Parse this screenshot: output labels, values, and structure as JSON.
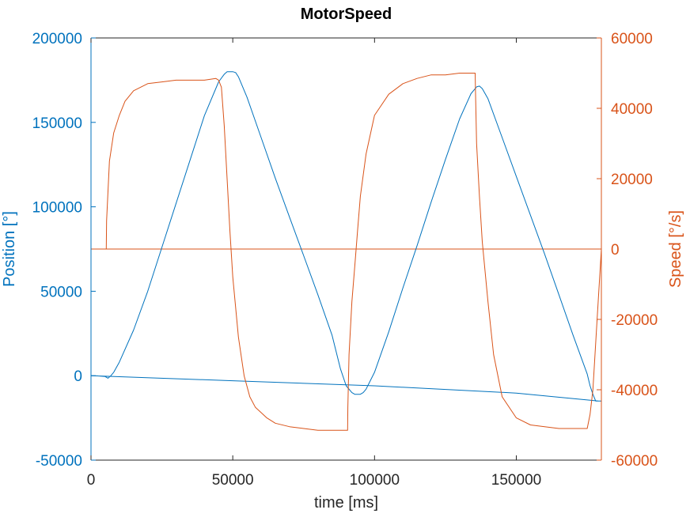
{
  "colors": {
    "position": "#0072bd",
    "speed": "#d95319",
    "axis": "#262626",
    "background": "#ffffff"
  },
  "chart_data": {
    "type": "line",
    "title": "MotorSpeed",
    "xlabel": "time [ms]",
    "ylabel_left": "Position [°]",
    "ylabel_right": "Speed [°/s]",
    "xlim": [
      0,
      180000
    ],
    "ylim_left": [
      -50000,
      200000
    ],
    "ylim_right": [
      -60000,
      60000
    ],
    "grid": false,
    "legend": "none",
    "x_ticks": [
      0,
      50000,
      100000,
      150000
    ],
    "x_tick_labels": [
      "0",
      "50000",
      "100000",
      "150000"
    ],
    "y_left_ticks": [
      -50000,
      0,
      50000,
      100000,
      150000,
      200000
    ],
    "y_left_tick_labels": [
      "-50000",
      "0",
      "50000",
      "100000",
      "150000",
      "200000"
    ],
    "y_right_ticks": [
      -60000,
      -40000,
      -20000,
      0,
      20000,
      40000,
      60000
    ],
    "y_right_tick_labels": [
      "-60000",
      "-40000",
      "-20000",
      "0",
      "20000",
      "40000",
      "60000"
    ],
    "series": [
      {
        "axis": "left",
        "color": "#0072bd",
        "x": [
          0,
          2000,
          5000,
          6000,
          7000,
          8000,
          10000,
          15000,
          20000,
          25000,
          30000,
          35000,
          40000,
          45000,
          47000,
          48000,
          49000,
          50000,
          51000,
          52000,
          55000,
          60000,
          65000,
          70000,
          75000,
          80000,
          85000,
          88000,
          90000,
          92000,
          93000,
          94000,
          95000,
          96000,
          97000,
          100000,
          105000,
          110000,
          115000,
          120000,
          125000,
          130000,
          134000,
          136000,
          137000,
          138000,
          140000,
          145000,
          150000,
          155000,
          160000,
          165000,
          170000,
          175000,
          176000,
          177000,
          178000,
          180000,
          179000,
          150000,
          100000,
          50000,
          0
        ],
        "y": [
          0,
          -100,
          -500,
          -1500,
          0,
          2000,
          8000,
          27000,
          50000,
          76000,
          102000,
          128000,
          154000,
          174000,
          178500,
          180000,
          180000,
          180000,
          179500,
          177000,
          165000,
          141000,
          117000,
          94000,
          71000,
          48000,
          24000,
          4000,
          -6000,
          -10000,
          -11000,
          -11000,
          -11000,
          -10000,
          -8000,
          2000,
          26000,
          52000,
          77000,
          103000,
          128000,
          152000,
          167000,
          171000,
          171500,
          170000,
          164000,
          141000,
          118000,
          95000,
          72000,
          48000,
          24000,
          1000,
          -6000,
          -11000,
          -15000,
          -15000,
          -15000,
          -10300,
          -6000,
          -3000,
          0
        ]
      },
      {
        "axis": "right",
        "color": "#d95319",
        "x": [
          0,
          5400,
          5500,
          6500,
          8000,
          10000,
          12000,
          15000,
          20000,
          25000,
          30000,
          35000,
          40000,
          44000,
          45000,
          45500,
          46000,
          47000,
          48000,
          49000,
          50000,
          52000,
          54000,
          56000,
          58000,
          60000,
          62000,
          65000,
          70000,
          75000,
          80000,
          85000,
          89000,
          90500,
          90600,
          91000,
          92000,
          93000,
          94000,
          95000,
          97000,
          100000,
          105000,
          110000,
          115000,
          120000,
          125000,
          130000,
          134000,
          135500,
          135600,
          136000,
          137000,
          138000,
          140000,
          142000,
          145000,
          150000,
          155000,
          160000,
          165000,
          170000,
          174000,
          175000,
          176000,
          177000,
          178500,
          180000
        ],
        "y": [
          0,
          0,
          8000,
          25000,
          33000,
          38000,
          42000,
          45000,
          47000,
          47500,
          48000,
          48000,
          48000,
          48500,
          48000,
          47000,
          46000,
          35000,
          20000,
          5000,
          -8000,
          -25000,
          -36000,
          -42000,
          -45000,
          -46500,
          -48000,
          -49500,
          -50500,
          -51000,
          -51500,
          -51500,
          -51500,
          -51500,
          -45000,
          -30000,
          -15000,
          -5000,
          5000,
          15000,
          27000,
          38000,
          44000,
          47000,
          48500,
          49500,
          49500,
          50000,
          50000,
          50000,
          45000,
          30000,
          15000,
          2000,
          -15000,
          -30000,
          -42000,
          -48000,
          -50000,
          -50500,
          -51000,
          -51000,
          -51000,
          -51000,
          -47000,
          -40000,
          -20000,
          0
        ]
      }
    ],
    "zero_reference": {
      "axis": "right",
      "y": 0,
      "color": "#d95319"
    }
  }
}
